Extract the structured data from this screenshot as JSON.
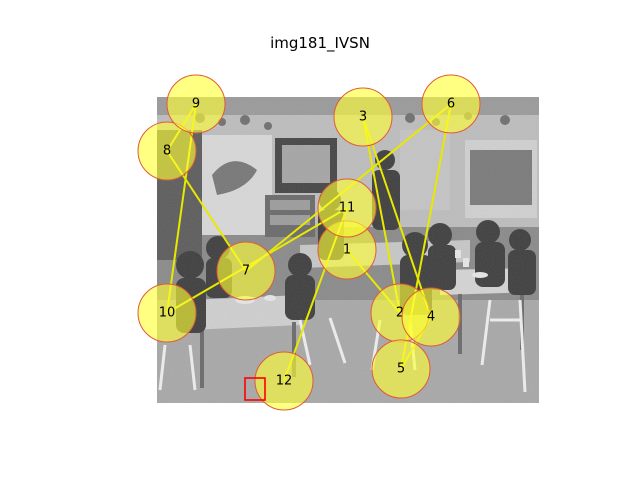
{
  "title": "img181_IVSN",
  "colors": {
    "fixation_fill": "#ffff33",
    "fixation_edge": "#e05a3a",
    "scanpath_line": "#e8e800",
    "target_box": "#ff0000"
  },
  "fixations": [
    {
      "label": "1"
    },
    {
      "label": "2"
    },
    {
      "label": "3"
    },
    {
      "label": "4"
    },
    {
      "label": "5"
    },
    {
      "label": "6"
    },
    {
      "label": "7"
    },
    {
      "label": "8"
    },
    {
      "label": "9"
    },
    {
      "label": "10"
    },
    {
      "label": "11"
    },
    {
      "label": "12"
    }
  ]
}
